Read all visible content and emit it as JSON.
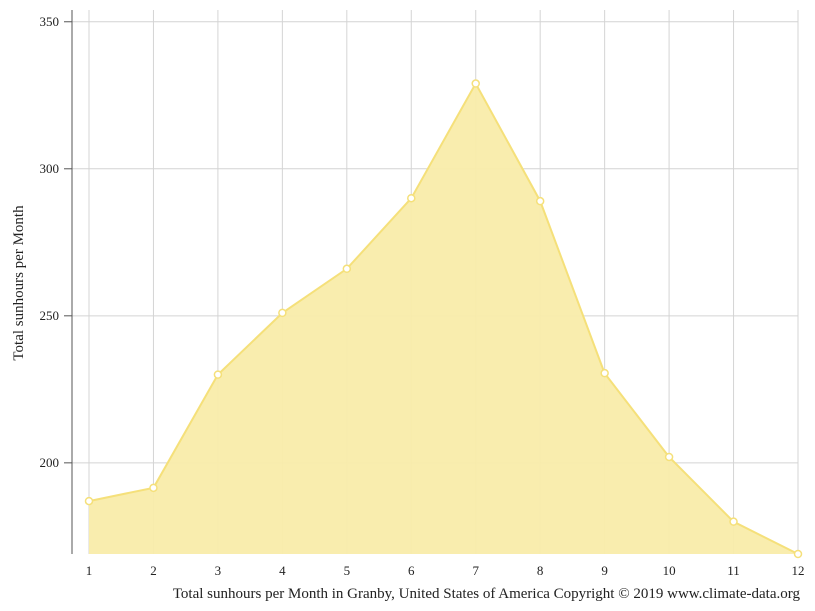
{
  "chart_data": {
    "type": "area",
    "ylabel": "Total sunhours per Month",
    "caption": "Total sunhours per Month in Granby, United States of America Copyright © 2019 www.climate-data.org",
    "x": [
      1,
      2,
      3,
      4,
      5,
      6,
      7,
      8,
      9,
      10,
      11,
      12
    ],
    "x_tick_labels": [
      "1",
      "2",
      "3",
      "4",
      "5",
      "6",
      "7",
      "8",
      "9",
      "10",
      "11",
      "12"
    ],
    "y_ticks": [
      200,
      250,
      300,
      350
    ],
    "y_tick_labels": [
      "200",
      "250",
      "300",
      "350"
    ],
    "ylim": [
      169,
      354
    ],
    "grid": true,
    "series": [
      {
        "values": [
          187,
          191.5,
          230,
          251,
          266,
          290,
          329,
          289,
          230.5,
          202,
          180,
          169
        ],
        "color": "#f5e07a",
        "fill": "#f9ecaa"
      }
    ]
  }
}
